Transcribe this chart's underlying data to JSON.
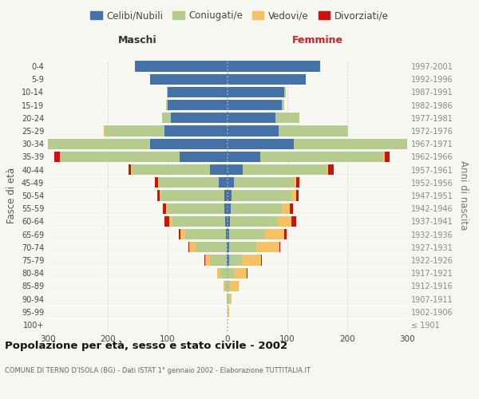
{
  "age_groups": [
    "100+",
    "95-99",
    "90-94",
    "85-89",
    "80-84",
    "75-79",
    "70-74",
    "65-69",
    "60-64",
    "55-59",
    "50-54",
    "45-49",
    "40-44",
    "35-39",
    "30-34",
    "25-29",
    "20-24",
    "15-19",
    "10-14",
    "5-9",
    "0-4"
  ],
  "birth_years": [
    "≤ 1901",
    "1902-1906",
    "1907-1911",
    "1912-1916",
    "1917-1921",
    "1922-1926",
    "1927-1931",
    "1932-1936",
    "1937-1941",
    "1942-1946",
    "1947-1951",
    "1952-1956",
    "1957-1961",
    "1962-1966",
    "1967-1971",
    "1972-1976",
    "1977-1981",
    "1982-1986",
    "1987-1991",
    "1992-1996",
    "1997-2001"
  ],
  "males_celibi": [
    0,
    0,
    0,
    0,
    0,
    2,
    2,
    3,
    4,
    5,
    6,
    15,
    30,
    80,
    130,
    105,
    95,
    100,
    100,
    130,
    155
  ],
  "males_coniugati": [
    0,
    0,
    2,
    5,
    12,
    28,
    52,
    68,
    88,
    95,
    105,
    100,
    130,
    200,
    215,
    100,
    15,
    3,
    2,
    0,
    0
  ],
  "males_vedovi": [
    0,
    0,
    0,
    2,
    5,
    8,
    10,
    8,
    5,
    3,
    2,
    1,
    1,
    0,
    0,
    2,
    0,
    0,
    0,
    0,
    0
  ],
  "males_divorziati": [
    0,
    0,
    0,
    0,
    1,
    1,
    1,
    2,
    9,
    5,
    5,
    5,
    5,
    9,
    2,
    0,
    0,
    0,
    0,
    0,
    0
  ],
  "females_nubili": [
    0,
    0,
    0,
    0,
    0,
    2,
    3,
    3,
    4,
    5,
    6,
    10,
    25,
    55,
    110,
    85,
    80,
    90,
    95,
    130,
    155
  ],
  "females_coniugate": [
    0,
    0,
    2,
    4,
    10,
    22,
    45,
    60,
    80,
    85,
    100,
    100,
    140,
    205,
    225,
    115,
    40,
    5,
    2,
    0,
    0
  ],
  "females_vedove": [
    0,
    2,
    5,
    15,
    22,
    32,
    38,
    32,
    22,
    14,
    8,
    5,
    3,
    2,
    2,
    1,
    0,
    0,
    0,
    0,
    0
  ],
  "females_divorziate": [
    0,
    0,
    0,
    0,
    1,
    1,
    2,
    3,
    9,
    5,
    5,
    5,
    9,
    9,
    9,
    0,
    0,
    0,
    0,
    0,
    0
  ],
  "color_celibi": "#4472a8",
  "color_coniugati": "#b5cc8e",
  "color_vedovi": "#f5c163",
  "color_divorziati": "#cc1111",
  "xlim": 300,
  "title": "Popolazione per età, sesso e stato civile - 2002",
  "subtitle": "COMUNE DI TERNO D'ISOLA (BG) - Dati ISTAT 1° gennaio 2002 - Elaborazione TUTTITALIA.IT",
  "ylabel_left": "Fasce di età",
  "ylabel_right": "Anni di nascita",
  "header_left": "Maschi",
  "header_right": "Femmine",
  "legend_labels": [
    "Celibi/Nubili",
    "Coniugati/e",
    "Vedovi/e",
    "Divorziati/e"
  ],
  "bg_color": "#f7f7f2",
  "grid_color": "#d0d0d0"
}
